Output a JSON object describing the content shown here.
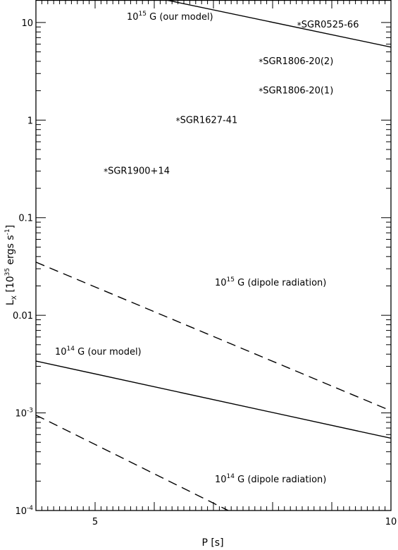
{
  "chart_data": {
    "type": "line",
    "title": "",
    "xlabel": "P [s]",
    "ylabel": {
      "main": "L",
      "sub": "X",
      "rest": " [10",
      "sup1": "35",
      "rest2": " ergs s",
      "sup2": "-1",
      "close": "]"
    },
    "x_scale": "linear",
    "y_scale": "log",
    "xlim": [
      4,
      10
    ],
    "ylim": [
      0.0001,
      17
    ],
    "x_ticks": [
      {
        "value": 5,
        "label": "5"
      },
      {
        "value": 10,
        "label": "10"
      }
    ],
    "y_ticks": [
      {
        "value": 10,
        "label": "10"
      },
      {
        "value": 1,
        "label": "1"
      },
      {
        "value": 0.1,
        "label": "0.1"
      },
      {
        "value": 0.01,
        "label": "0.01"
      },
      {
        "value": 0.001,
        "label_base": "10",
        "label_exp": "-3"
      },
      {
        "value": 0.0001,
        "label_base": "10",
        "label_exp": "-4"
      }
    ],
    "series": [
      {
        "style": "solid",
        "points": [
          [
            6.2,
            17
          ],
          [
            10,
            5.6
          ]
        ]
      },
      {
        "style": "dashed",
        "points": [
          [
            4,
            0.035
          ],
          [
            10,
            0.00105
          ]
        ]
      },
      {
        "style": "solid",
        "points": [
          [
            4,
            0.0034
          ],
          [
            10,
            0.00055
          ]
        ]
      },
      {
        "style": "dashed",
        "points": [
          [
            4,
            0.00095
          ],
          [
            7.25,
            0.0001
          ]
        ]
      }
    ],
    "points": [
      {
        "label": "SGR0525-66",
        "x": 8.45,
        "y": 9.5
      },
      {
        "label": "SGR1806-20(2)",
        "x": 7.8,
        "y": 4.0
      },
      {
        "label": "SGR1806-20(1)",
        "x": 7.8,
        "y": 2.0
      },
      {
        "label": "SGR1627-41",
        "x": 6.4,
        "y": 1.0
      },
      {
        "label": "SGR1900+14",
        "x": 5.18,
        "y": 0.3
      }
    ],
    "annotations": [
      {
        "base": "10",
        "sup": "15",
        "rest": " G (our model)"
      },
      {
        "base": "10",
        "sup": "15",
        "rest": " G (dipole radiation)"
      },
      {
        "base": "10",
        "sup": "14",
        "rest": " G (our model)"
      },
      {
        "base": "10",
        "sup": "14",
        "rest": " G (dipole radiation)"
      }
    ],
    "grid": false,
    "legend": "none"
  }
}
